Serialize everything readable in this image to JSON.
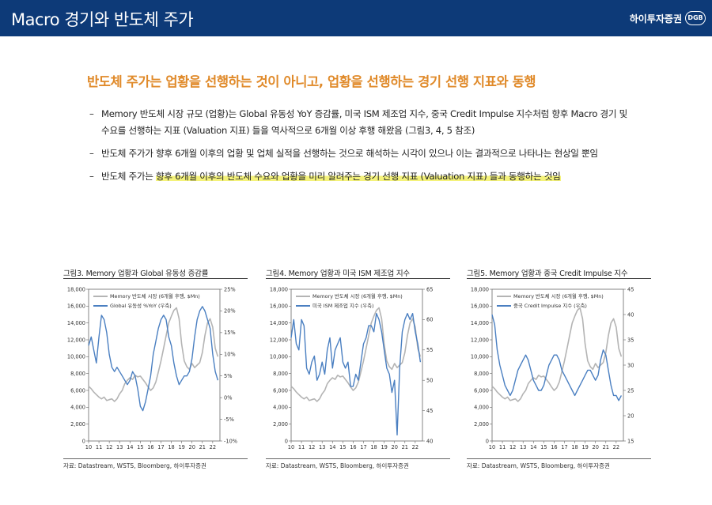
{
  "header": {
    "title": "Macro 경기와 반도체 주가",
    "brand": "하이투자증권",
    "brand_logo": "DGB"
  },
  "headline": "반도체 주가는 업황을 선행하는 것이 아니고, 업황을 선행하는 경기 선행 지표와 동행",
  "bullets": {
    "b1": "Memory 반도체 시장 규모 (업황)는 Global 유동성 YoY 증감률, 미국 ISM 제조업 지수, 중국 Credit Impulse 지수처럼 향후 Macro 경기 및 수요를 선행하는 지표 (Valuation 지표) 들을 역사적으로 6개월 이상 후행 해왔음 (그림3, 4, 5 참조)",
    "b2": "반도체 주가가 향후 6개월 이후의 업황 및 업체 실적을 선행하는 것으로 해석하는 시각이 있으나 이는 결과적으로 나타나는 현상일 뿐임",
    "b3_plain": "반도체 주가는 ",
    "b3_highlight": "향후 6개월 이후의 반도체 수요와 업황을 미리 알려주는 경기 선행 지표 (Valuation 지표) 들과 동행하는 것임"
  },
  "figures": [
    {
      "title": "그림3. Memory 업황과 Global 유동성 증감률",
      "source": "자료: Datastream, WSTS, Bloomberg, 하이투자증권"
    },
    {
      "title": "그림4. Memory 업황과 미국 ISM 제조업 지수",
      "source": "자료: Datastream, WSTS, Bloomberg, 하이투자증권"
    },
    {
      "title": "그림5. Memory 업황과 중국 Credit Impulse 지수",
      "source": "자료: Datastream, WSTS, Bloomberg, 하이투자증권"
    }
  ],
  "chart_data": [
    {
      "type": "line",
      "x_ticks": [
        "10",
        "11",
        "12",
        "13",
        "14",
        "15",
        "16",
        "17",
        "18",
        "19",
        "20",
        "21",
        "22"
      ],
      "x_range": [
        2010,
        2022.7
      ],
      "ylim": [
        0,
        18000
      ],
      "y_ticks": [
        "0",
        "2,000",
        "4,000",
        "6,000",
        "8,000",
        "10,000",
        "12,000",
        "14,000",
        "16,000",
        "18,000"
      ],
      "y2lim": [
        -10,
        25
      ],
      "y2_ticks": [
        "-10%",
        "-5%",
        "0%",
        "5%",
        "10%",
        "15%",
        "20%",
        "25%"
      ],
      "series": [
        {
          "name": "Memory 반도체 시장 (6개월 후행, $Mn)",
          "axis": "left",
          "color": "#b4b4b4",
          "x": [
            2010,
            2010.25,
            2010.5,
            2010.75,
            2011,
            2011.25,
            2011.5,
            2011.75,
            2012,
            2012.25,
            2012.5,
            2012.75,
            2013,
            2013.25,
            2013.5,
            2013.75,
            2014,
            2014.25,
            2014.5,
            2014.75,
            2015,
            2015.25,
            2015.5,
            2015.75,
            2016,
            2016.25,
            2016.5,
            2016.75,
            2017,
            2017.25,
            2017.5,
            2017.75,
            2018,
            2018.25,
            2018.5,
            2018.75,
            2019,
            2019.25,
            2019.5,
            2019.75,
            2020,
            2020.25,
            2020.5,
            2020.75,
            2021,
            2021.25,
            2021.5,
            2021.75,
            2022,
            2022.25,
            2022.5
          ],
          "values": [
            6500,
            6200,
            5800,
            5500,
            5200,
            5000,
            5200,
            4800,
            4900,
            5000,
            4700,
            5000,
            5600,
            6000,
            6800,
            7200,
            7500,
            7300,
            7800,
            7600,
            7700,
            7300,
            6900,
            6400,
            6000,
            6300,
            7000,
            8200,
            9500,
            11000,
            12500,
            14000,
            14800,
            15500,
            15800,
            14500,
            11500,
            9500,
            8800,
            8500,
            9200,
            8700,
            9000,
            9300,
            10500,
            12500,
            14000,
            14500,
            13500,
            11000,
            10000
          ]
        },
        {
          "name": "Global 유동성 %YoY (우축)",
          "axis": "right",
          "color": "#4a7fc1",
          "x": [
            2010,
            2010.25,
            2010.5,
            2010.75,
            2011,
            2011.25,
            2011.5,
            2011.75,
            2012,
            2012.25,
            2012.5,
            2012.75,
            2013,
            2013.25,
            2013.5,
            2013.75,
            2014,
            2014.25,
            2014.5,
            2014.75,
            2015,
            2015.25,
            2015.5,
            2015.75,
            2016,
            2016.25,
            2016.5,
            2016.75,
            2017,
            2017.25,
            2017.5,
            2017.75,
            2018,
            2018.25,
            2018.5,
            2018.75,
            2019,
            2019.25,
            2019.5,
            2019.75,
            2020,
            2020.25,
            2020.5,
            2020.75,
            2021,
            2021.25,
            2021.5,
            2021.75,
            2022,
            2022.25,
            2022.5
          ],
          "values": [
            12,
            14,
            11,
            8,
            14,
            19,
            18,
            15,
            10,
            7,
            6,
            7,
            6,
            5,
            4,
            3,
            4,
            6,
            5,
            2,
            -2,
            -3,
            -1,
            2,
            5,
            10,
            13,
            16,
            18,
            19,
            18,
            14,
            12,
            8,
            5,
            3,
            4,
            5,
            5,
            6,
            9,
            14,
            18,
            20,
            21,
            20,
            18,
            16,
            10,
            6,
            4
          ]
        }
      ]
    },
    {
      "type": "line",
      "x_ticks": [
        "10",
        "11",
        "12",
        "13",
        "14",
        "15",
        "16",
        "17",
        "18",
        "19",
        "20",
        "21",
        "22"
      ],
      "x_range": [
        2010,
        2022.7
      ],
      "ylim": [
        0,
        18000
      ],
      "y_ticks": [
        "0",
        "2,000",
        "4,000",
        "6,000",
        "8,000",
        "10,000",
        "12,000",
        "14,000",
        "16,000",
        "18,000"
      ],
      "y2lim": [
        40,
        65
      ],
      "y2_ticks": [
        "40",
        "45",
        "50",
        "55",
        "60",
        "65"
      ],
      "series": [
        {
          "name": "Memory 반도체 시장 (6개월 후행, $Mn)",
          "axis": "left",
          "color": "#b4b4b4",
          "x": [
            2010,
            2010.25,
            2010.5,
            2010.75,
            2011,
            2011.25,
            2011.5,
            2011.75,
            2012,
            2012.25,
            2012.5,
            2012.75,
            2013,
            2013.25,
            2013.5,
            2013.75,
            2014,
            2014.25,
            2014.5,
            2014.75,
            2015,
            2015.25,
            2015.5,
            2015.75,
            2016,
            2016.25,
            2016.5,
            2016.75,
            2017,
            2017.25,
            2017.5,
            2017.75,
            2018,
            2018.25,
            2018.5,
            2018.75,
            2019,
            2019.25,
            2019.5,
            2019.75,
            2020,
            2020.25,
            2020.5,
            2020.75,
            2021,
            2021.25,
            2021.5,
            2021.75,
            2022,
            2022.25,
            2022.5
          ],
          "values": [
            6500,
            6200,
            5800,
            5500,
            5200,
            5000,
            5200,
            4800,
            4900,
            5000,
            4700,
            5000,
            5600,
            6000,
            6800,
            7200,
            7500,
            7300,
            7800,
            7600,
            7700,
            7300,
            6900,
            6400,
            6000,
            6300,
            7000,
            8200,
            9500,
            11000,
            12500,
            14000,
            14800,
            15500,
            15800,
            14500,
            11500,
            9500,
            8800,
            8500,
            9200,
            8700,
            9000,
            9300,
            10500,
            12500,
            14000,
            14500,
            13500,
            11000,
            10000
          ]
        },
        {
          "name": "미국 ISM 제조업 지수 (우축)",
          "axis": "right",
          "color": "#4a7fc1",
          "x": [
            2010,
            2010.25,
            2010.5,
            2010.75,
            2011,
            2011.25,
            2011.5,
            2011.75,
            2012,
            2012.25,
            2012.5,
            2012.75,
            2013,
            2013.25,
            2013.5,
            2013.75,
            2014,
            2014.25,
            2014.5,
            2014.75,
            2015,
            2015.25,
            2015.5,
            2015.75,
            2016,
            2016.25,
            2016.5,
            2016.75,
            2017,
            2017.25,
            2017.5,
            2017.75,
            2018,
            2018.25,
            2018.5,
            2018.75,
            2019,
            2019.25,
            2019.5,
            2019.75,
            2020,
            2020.25,
            2020.5,
            2020.75,
            2021,
            2021.25,
            2021.5,
            2021.75,
            2022,
            2022.25,
            2022.5
          ],
          "values": [
            57,
            60,
            56,
            55,
            60,
            59,
            52,
            51,
            53,
            54,
            50,
            51,
            53,
            51,
            55,
            57,
            52,
            55,
            56,
            57,
            53,
            52,
            53,
            49,
            49,
            51,
            50,
            53,
            56,
            57,
            59,
            59,
            58,
            61,
            60,
            58,
            55,
            52,
            51,
            48,
            50,
            41,
            52,
            58,
            60,
            61,
            60,
            61,
            58,
            56,
            53
          ]
        }
      ]
    },
    {
      "type": "line",
      "x_ticks": [
        "10",
        "11",
        "12",
        "13",
        "14",
        "15",
        "16",
        "17",
        "18",
        "19",
        "20",
        "21",
        "22"
      ],
      "x_range": [
        2010,
        2022.7
      ],
      "ylim": [
        0,
        18000
      ],
      "y_ticks": [
        "0",
        "2,000",
        "4,000",
        "6,000",
        "8,000",
        "10,000",
        "12,000",
        "14,000",
        "16,000",
        "18,000"
      ],
      "y2lim": [
        15,
        45
      ],
      "y2_ticks": [
        "15",
        "20",
        "25",
        "30",
        "35",
        "40",
        "45"
      ],
      "series": [
        {
          "name": "Memory 반도체 시장 (6개월 후행, $Mn)",
          "axis": "left",
          "color": "#b4b4b4",
          "x": [
            2010,
            2010.25,
            2010.5,
            2010.75,
            2011,
            2011.25,
            2011.5,
            2011.75,
            2012,
            2012.25,
            2012.5,
            2012.75,
            2013,
            2013.25,
            2013.5,
            2013.75,
            2014,
            2014.25,
            2014.5,
            2014.75,
            2015,
            2015.25,
            2015.5,
            2015.75,
            2016,
            2016.25,
            2016.5,
            2016.75,
            2017,
            2017.25,
            2017.5,
            2017.75,
            2018,
            2018.25,
            2018.5,
            2018.75,
            2019,
            2019.25,
            2019.5,
            2019.75,
            2020,
            2020.25,
            2020.5,
            2020.75,
            2021,
            2021.25,
            2021.5,
            2021.75,
            2022,
            2022.25,
            2022.5
          ],
          "values": [
            6500,
            6200,
            5800,
            5500,
            5200,
            5000,
            5200,
            4800,
            4900,
            5000,
            4700,
            5000,
            5600,
            6000,
            6800,
            7200,
            7500,
            7300,
            7800,
            7600,
            7700,
            7300,
            6900,
            6400,
            6000,
            6300,
            7000,
            8200,
            9500,
            11000,
            12500,
            14000,
            14800,
            15500,
            15800,
            14500,
            11500,
            9500,
            8800,
            8500,
            9200,
            8700,
            9000,
            9300,
            10500,
            12500,
            14000,
            14500,
            13500,
            11000,
            10000
          ]
        },
        {
          "name": "중국 Credit Impulse 지수 (우축)",
          "axis": "right",
          "color": "#4a7fc1",
          "x": [
            2010,
            2010.25,
            2010.5,
            2010.75,
            2011,
            2011.25,
            2011.5,
            2011.75,
            2012,
            2012.25,
            2012.5,
            2012.75,
            2013,
            2013.25,
            2013.5,
            2013.75,
            2014,
            2014.25,
            2014.5,
            2014.75,
            2015,
            2015.25,
            2015.5,
            2015.75,
            2016,
            2016.25,
            2016.5,
            2016.75,
            2017,
            2017.25,
            2017.5,
            2017.75,
            2018,
            2018.25,
            2018.5,
            2018.75,
            2019,
            2019.25,
            2019.5,
            2019.75,
            2020,
            2020.25,
            2020.5,
            2020.75,
            2021,
            2021.25,
            2021.5,
            2021.75,
            2022,
            2022.25,
            2022.5
          ],
          "values": [
            40,
            38,
            33,
            30,
            28,
            26,
            25,
            24,
            25,
            27,
            29,
            30,
            31,
            32,
            31,
            29,
            27,
            26,
            25,
            25,
            26,
            28,
            30,
            31,
            32,
            32,
            31,
            29,
            28,
            27,
            26,
            25,
            24,
            25,
            26,
            27,
            28,
            29,
            29,
            28,
            27,
            28,
            31,
            33,
            32,
            29,
            26,
            24,
            24,
            23,
            24
          ]
        }
      ]
    }
  ]
}
